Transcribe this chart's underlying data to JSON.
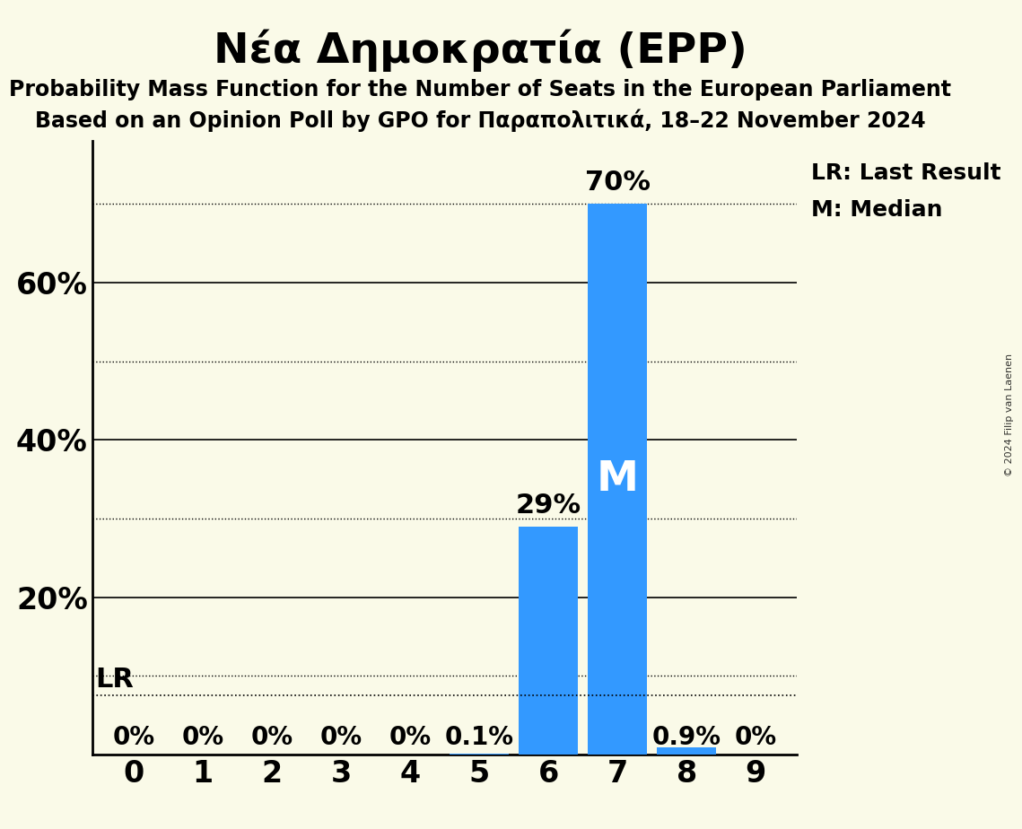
{
  "title": "Νέα Δημοκρατία (EPP)",
  "subtitle1": "Probability Mass Function for the Number of Seats in the European Parliament",
  "subtitle2": "Based on an Opinion Poll by GPO for Παραπολιτικά, 18–22 November 2024",
  "copyright": "© 2024 Filip van Laenen",
  "seats": [
    0,
    1,
    2,
    3,
    4,
    5,
    6,
    7,
    8,
    9
  ],
  "probabilities": [
    0.0,
    0.0,
    0.0,
    0.0,
    0.0,
    0.001,
    0.29,
    0.7,
    0.009,
    0.0
  ],
  "bar_color": "#3399FF",
  "bg_color": "#FAFAE8",
  "median_seat": 7,
  "lr_value": 0.075,
  "ylim_max": 0.78,
  "solid_gridlines": [
    0.2,
    0.4,
    0.6
  ],
  "dotted_gridlines": [
    0.1,
    0.3,
    0.5,
    0.7
  ],
  "ytick_positions": [
    0.2,
    0.4,
    0.6
  ],
  "ytick_labels": [
    "20%",
    "40%",
    "60%"
  ],
  "label_texts": [
    "0%",
    "0%",
    "0%",
    "0%",
    "0%",
    "0.1%",
    "29%",
    "70%",
    "0.9%",
    "0%"
  ],
  "legend_lr": "LR: Last Result",
  "legend_m": "M: Median",
  "lr_label": "LR",
  "median_label": "M"
}
